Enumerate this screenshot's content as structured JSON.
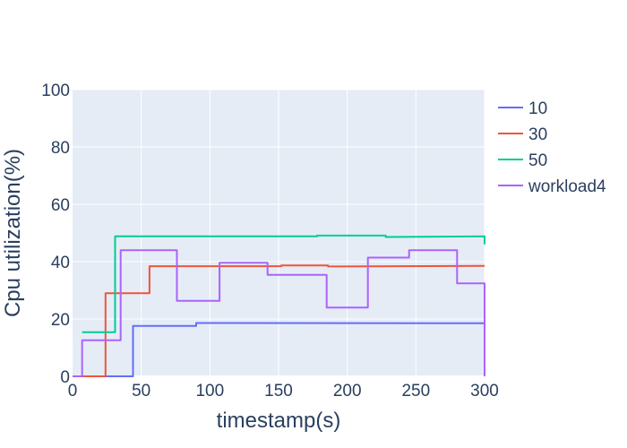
{
  "chart_data": {
    "type": "line",
    "line_shape": "step",
    "xlabel": "timestamp(s)",
    "ylabel": "Cpu utilization(%)",
    "xlim": [
      0,
      300
    ],
    "ylim": [
      0,
      100
    ],
    "x_ticks": [
      0,
      50,
      100,
      150,
      200,
      250,
      300
    ],
    "y_ticks": [
      0,
      20,
      40,
      60,
      80,
      100
    ],
    "grid": true,
    "legend_position": "right",
    "plot_background": "#e5ecf6",
    "series": [
      {
        "name": "10",
        "color": "#636efa",
        "points": [
          [
            0,
            0
          ],
          [
            44,
            0
          ],
          [
            44,
            17.6
          ],
          [
            90,
            17.6
          ],
          [
            90,
            18.6
          ],
          [
            300,
            18.5
          ],
          [
            300,
            0
          ]
        ]
      },
      {
        "name": "30",
        "color": "#ef553b",
        "points": [
          [
            0,
            0
          ],
          [
            24,
            0
          ],
          [
            24,
            29
          ],
          [
            56,
            29
          ],
          [
            56,
            38.4
          ],
          [
            152,
            38.4
          ],
          [
            152,
            38.7
          ],
          [
            186,
            38.7
          ],
          [
            186,
            38.3
          ],
          [
            300,
            38.5
          ]
        ]
      },
      {
        "name": "50",
        "color": "#00cc96",
        "points": [
          [
            7,
            15.4
          ],
          [
            31,
            15.4
          ],
          [
            31,
            48.8
          ],
          [
            178,
            48.8
          ],
          [
            178,
            49.1
          ],
          [
            228,
            49.1
          ],
          [
            228,
            48.6
          ],
          [
            300,
            48.8
          ],
          [
            300,
            46
          ]
        ]
      },
      {
        "name": "workload4",
        "color": "#ab63fa",
        "points": [
          [
            0,
            0
          ],
          [
            7,
            0
          ],
          [
            7,
            12.6
          ],
          [
            35,
            12.6
          ],
          [
            35,
            44
          ],
          [
            76,
            44
          ],
          [
            76,
            26.3
          ],
          [
            107,
            26.3
          ],
          [
            107,
            39.6
          ],
          [
            142,
            39.6
          ],
          [
            142,
            35.4
          ],
          [
            185,
            35.4
          ],
          [
            185,
            24
          ],
          [
            215,
            24
          ],
          [
            215,
            41.4
          ],
          [
            245,
            41.4
          ],
          [
            245,
            44
          ],
          [
            280,
            44
          ],
          [
            280,
            32.4
          ],
          [
            300,
            32.4
          ],
          [
            300,
            0
          ]
        ]
      }
    ]
  }
}
